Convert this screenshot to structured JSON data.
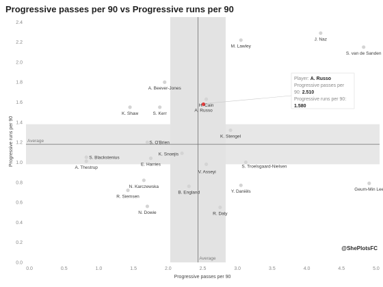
{
  "title": "Progressive passes per 90 vs Progressive runs per 90",
  "watermark": "@ShePlotsFC",
  "colors": {
    "point": "#d4d4d4",
    "highlight": "#e03c3c",
    "band": "#e3e3e3",
    "avg_line": "#6e6e6e",
    "text": "#3a3a3a"
  },
  "tooltip": {
    "line1_key": "Player:",
    "line1_val": "A. Russo",
    "line2": "Progressive passes per",
    "line3_key": "90:",
    "line3_val": "2.510",
    "line4": "Progressive runs per 90:",
    "line5_val": "1.580"
  },
  "chart_data": {
    "type": "scatter",
    "title": "Progressive passes per 90 vs Progressive runs per 90",
    "xlabel": "Progressive passes per 90",
    "ylabel": "Progressive runs per 90",
    "xlim": [
      -0.05,
      5.05
    ],
    "ylim": [
      0.0,
      2.45
    ],
    "xticks": [
      "0.0",
      "0.5",
      "1.0",
      "1.5",
      "2.0",
      "2.5",
      "3.0",
      "3.5",
      "4.0",
      "4.5",
      "5.0"
    ],
    "xtick_values": [
      0,
      0.5,
      1,
      1.5,
      2,
      2.5,
      3,
      3.5,
      4,
      4.5,
      5
    ],
    "yticks": [
      "0.0",
      "0.2",
      "0.4",
      "0.6",
      "0.8",
      "1.0",
      "1.2",
      "1.4",
      "1.6",
      "1.8",
      "2.0",
      "2.2",
      "2.4"
    ],
    "ytick_values": [
      0,
      0.2,
      0.4,
      0.6,
      0.8,
      1.0,
      1.2,
      1.4,
      1.6,
      1.8,
      2.0,
      2.2,
      2.4
    ],
    "x_average": 2.43,
    "y_average": 1.18,
    "x_average_label": "Average",
    "y_average_label": "Average",
    "x_band": [
      2.03,
      2.83
    ],
    "y_band": [
      0.98,
      1.38
    ],
    "grid": false,
    "highlight": "A. Russo",
    "points": [
      {
        "name": "J. Naz",
        "x": 4.2,
        "y": 2.29
      },
      {
        "name": "M. Lawley",
        "x": 3.05,
        "y": 2.22
      },
      {
        "name": "S. van de Sanden",
        "x": 4.82,
        "y": 2.15
      },
      {
        "name": "A. Beever-Jones",
        "x": 1.95,
        "y": 1.8
      },
      {
        "name": "H. Cain",
        "x": 2.55,
        "y": 1.63
      },
      {
        "name": "A. Russo",
        "x": 2.51,
        "y": 1.58
      },
      {
        "name": "K. Shaw",
        "x": 1.45,
        "y": 1.55
      },
      {
        "name": "S. Kerr",
        "x": 1.88,
        "y": 1.55
      },
      {
        "name": "K. Stengel",
        "x": 2.9,
        "y": 1.32
      },
      {
        "name": "S. O'Brien",
        "x": 1.7,
        "y": 1.2
      },
      {
        "name": "S. Blackstenius",
        "x": 0.82,
        "y": 1.05
      },
      {
        "name": "A. Thestrup",
        "x": 0.82,
        "y": 1.01
      },
      {
        "name": "E. Harries",
        "x": 1.75,
        "y": 1.04
      },
      {
        "name": "K. Snoejis",
        "x": 2.2,
        "y": 1.09
      },
      {
        "name": "S. Troelsgaard-Nielsen",
        "x": 3.12,
        "y": 1.0
      },
      {
        "name": "V. Asseyi",
        "x": 2.55,
        "y": 0.98
      },
      {
        "name": "N. Karczewska",
        "x": 1.65,
        "y": 0.82
      },
      {
        "name": "B. England",
        "x": 2.3,
        "y": 0.76
      },
      {
        "name": "Y. Daniëls",
        "x": 3.05,
        "y": 0.77
      },
      {
        "name": "Geum-Min Lee",
        "x": 4.9,
        "y": 0.79
      },
      {
        "name": "R. Siemsen",
        "x": 1.42,
        "y": 0.72
      },
      {
        "name": "N. Dowie",
        "x": 1.7,
        "y": 0.56
      },
      {
        "name": "R. Daly",
        "x": 2.75,
        "y": 0.55
      }
    ]
  }
}
